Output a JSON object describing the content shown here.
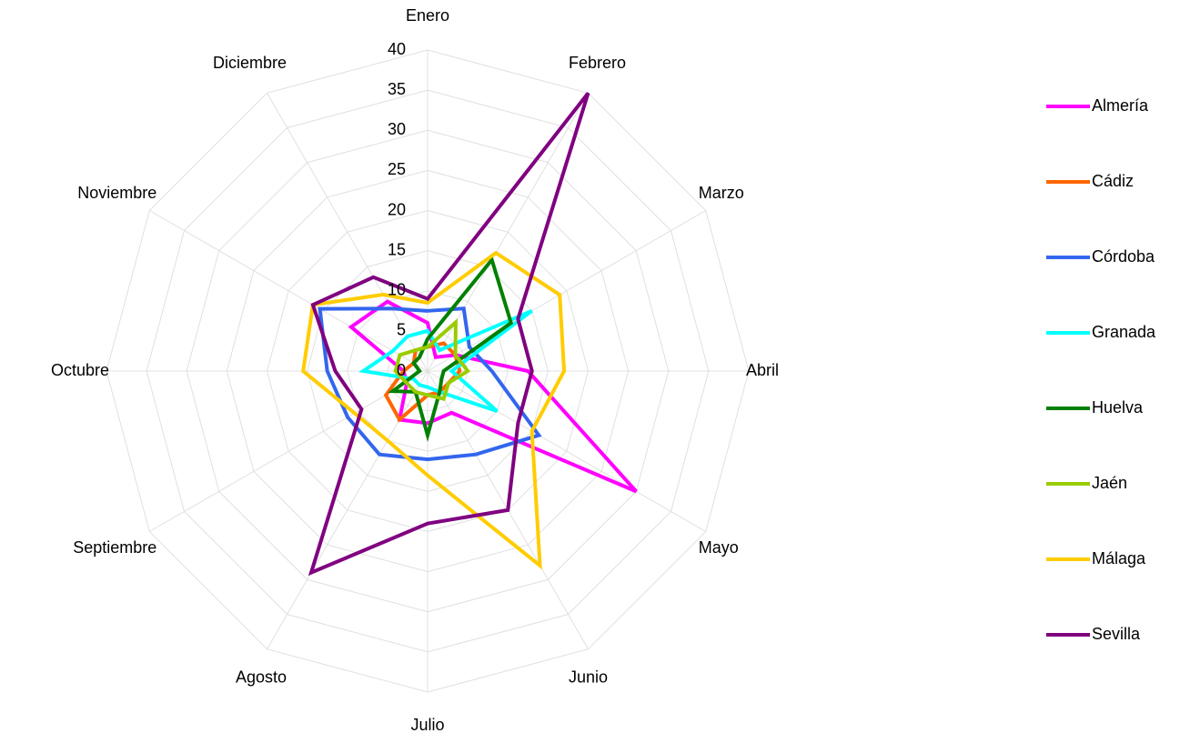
{
  "chart_data": {
    "type": "radar",
    "categories": [
      "Enero",
      "Febrero",
      "Marzo",
      "Abril",
      "Mayo",
      "Junio",
      "Julio",
      "Agosto",
      "Septiembre",
      "Octubre",
      "Noviembre",
      "Diciembre"
    ],
    "ylim": [
      0,
      40
    ],
    "yticks": [
      0,
      5,
      10,
      15,
      20,
      25,
      30,
      35,
      40
    ],
    "grid": true,
    "legend": "right",
    "series": [
      {
        "name": "Almería",
        "color": "#ff00ff",
        "values": [
          6,
          2,
          4,
          12.5,
          30,
          6,
          6.5,
          7,
          3,
          3,
          11,
          10
        ]
      },
      {
        "name": "Cádiz",
        "color": "#ff6600",
        "values": [
          3,
          4,
          4,
          4,
          3,
          3,
          3,
          7,
          6,
          3,
          2,
          3
        ]
      },
      {
        "name": "Córdoba",
        "color": "#3366ee",
        "values": [
          7.5,
          9,
          6,
          8,
          16,
          12,
          11,
          12,
          11.5,
          12.5,
          15.5,
          9
        ]
      },
      {
        "name": "Granada",
        "color": "#00ffff",
        "values": [
          5,
          3,
          15,
          3,
          10,
          3,
          2,
          2,
          2,
          8,
          5,
          5
        ]
      },
      {
        "name": "Huelva",
        "color": "#008000",
        "values": [
          4,
          16,
          12,
          2,
          2,
          3,
          8,
          3,
          5,
          1,
          2,
          2
        ]
      },
      {
        "name": "Jaén",
        "color": "#99cc00",
        "values": [
          3,
          7,
          4,
          5,
          3,
          4,
          3,
          3,
          3,
          4,
          4,
          3
        ]
      },
      {
        "name": "Málaga",
        "color": "#ffcc00",
        "values": [
          8.5,
          17,
          19,
          17,
          15,
          28,
          13,
          10,
          10.5,
          15.5,
          16.5,
          11
        ]
      },
      {
        "name": "Sevilla",
        "color": "#800080",
        "values": [
          9,
          40,
          13,
          13,
          13,
          20,
          19,
          29,
          9.5,
          11.5,
          16.5,
          13.5
        ]
      }
    ]
  }
}
